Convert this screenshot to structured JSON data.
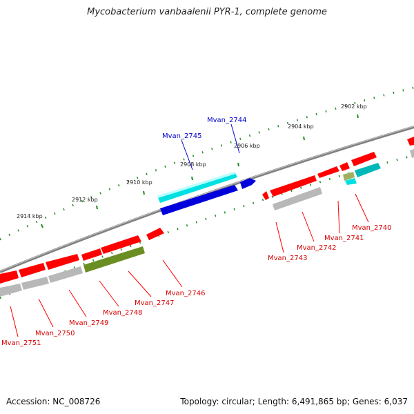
{
  "title": "Mycobacterium vanbaalenii PYR-1, complete genome",
  "footer": {
    "accession": "Accession: NC_008726",
    "summary": "Topology: circular; Length: 6,491,865 bp; Genes: 6,037"
  },
  "colors": {
    "forward": "#ff0000",
    "reverse_gray": "#b8b8b8",
    "cyan": "#22d6d6",
    "blue": "#0000dd",
    "olive": "#6b8e23",
    "backbone": "#808080",
    "tick_dots": "#228b22",
    "label_red": "#d40000",
    "label_blue": "#0000cc"
  },
  "scale_labels": [
    "2914 kbp",
    "2912 kbp",
    "2910 kbp",
    "2908 kbp",
    "2906 kbp",
    "2904 kbp",
    "2902 kbp"
  ],
  "genes": [
    {
      "name": "Mvan_2740",
      "label_class": "red"
    },
    {
      "name": "Mvan_2741",
      "label_class": "red"
    },
    {
      "name": "Mvan_2742",
      "label_class": "red"
    },
    {
      "name": "Mvan_2743",
      "label_class": "red"
    },
    {
      "name": "Mvan_2744",
      "label_class": "blue"
    },
    {
      "name": "Mvan_2745",
      "label_class": "blue"
    },
    {
      "name": "Mvan_2746",
      "label_class": "red"
    },
    {
      "name": "Mvan_2747",
      "label_class": "red"
    },
    {
      "name": "Mvan_2748",
      "label_class": "red"
    },
    {
      "name": "Mvan_2749",
      "label_class": "red"
    },
    {
      "name": "Mvan_2750",
      "label_class": "red"
    },
    {
      "name": "Mvan_2751",
      "label_class": "red"
    }
  ]
}
